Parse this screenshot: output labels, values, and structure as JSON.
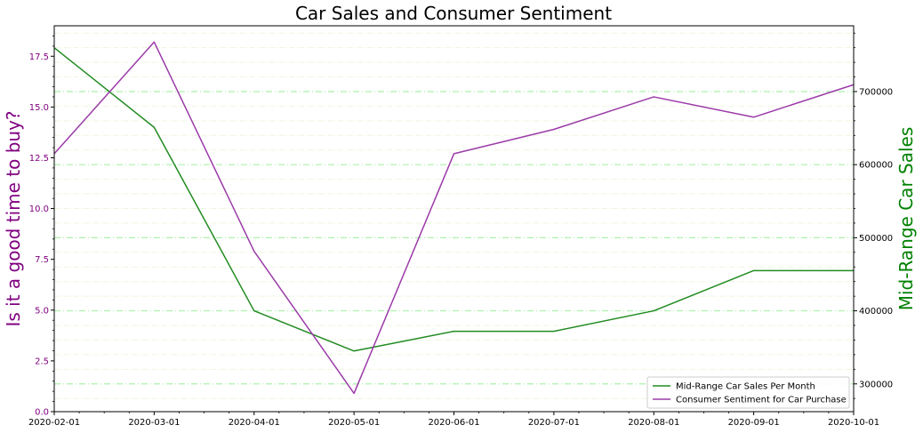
{
  "chart_data": {
    "type": "line",
    "title": "Car Sales and Consumer Sentiment",
    "x": [
      "2020-02-01",
      "2020-03-01",
      "2020-04-01",
      "2020-05-01",
      "2020-06-01",
      "2020-07-01",
      "2020-08-01",
      "2020-09-01",
      "2020-10-01"
    ],
    "left_axis": {
      "label": "Is it a good time to buy?",
      "color": "#800080",
      "ylim": [
        0,
        19
      ],
      "ticks": [
        "0.0",
        "2.5",
        "5.0",
        "7.5",
        "10.0",
        "12.5",
        "15.0",
        "17.5"
      ]
    },
    "right_axis": {
      "label": "Mid-Range Car Sales",
      "color": "#008000",
      "ylim": [
        262000,
        790000
      ],
      "ticks": [
        "300000",
        "400000",
        "500000",
        "600000",
        "700000"
      ]
    },
    "series": [
      {
        "name": "Mid-Range Car Sales Per Month",
        "axis": "right",
        "color": "#228B22",
        "values": [
          760000,
          651000,
          400000,
          345000,
          372000,
          372000,
          400000,
          455000,
          455000
        ]
      },
      {
        "name": "Consumer Sentiment for Car Purchase",
        "axis": "left",
        "color": "#9B3BA8",
        "values": [
          12.7,
          18.2,
          7.9,
          0.9,
          12.7,
          13.9,
          15.5,
          14.5,
          16.1
        ]
      }
    ],
    "legend": "lower-right",
    "grid": {
      "major_color": "#90EE90",
      "minor_color": "#EEF6DD"
    }
  }
}
